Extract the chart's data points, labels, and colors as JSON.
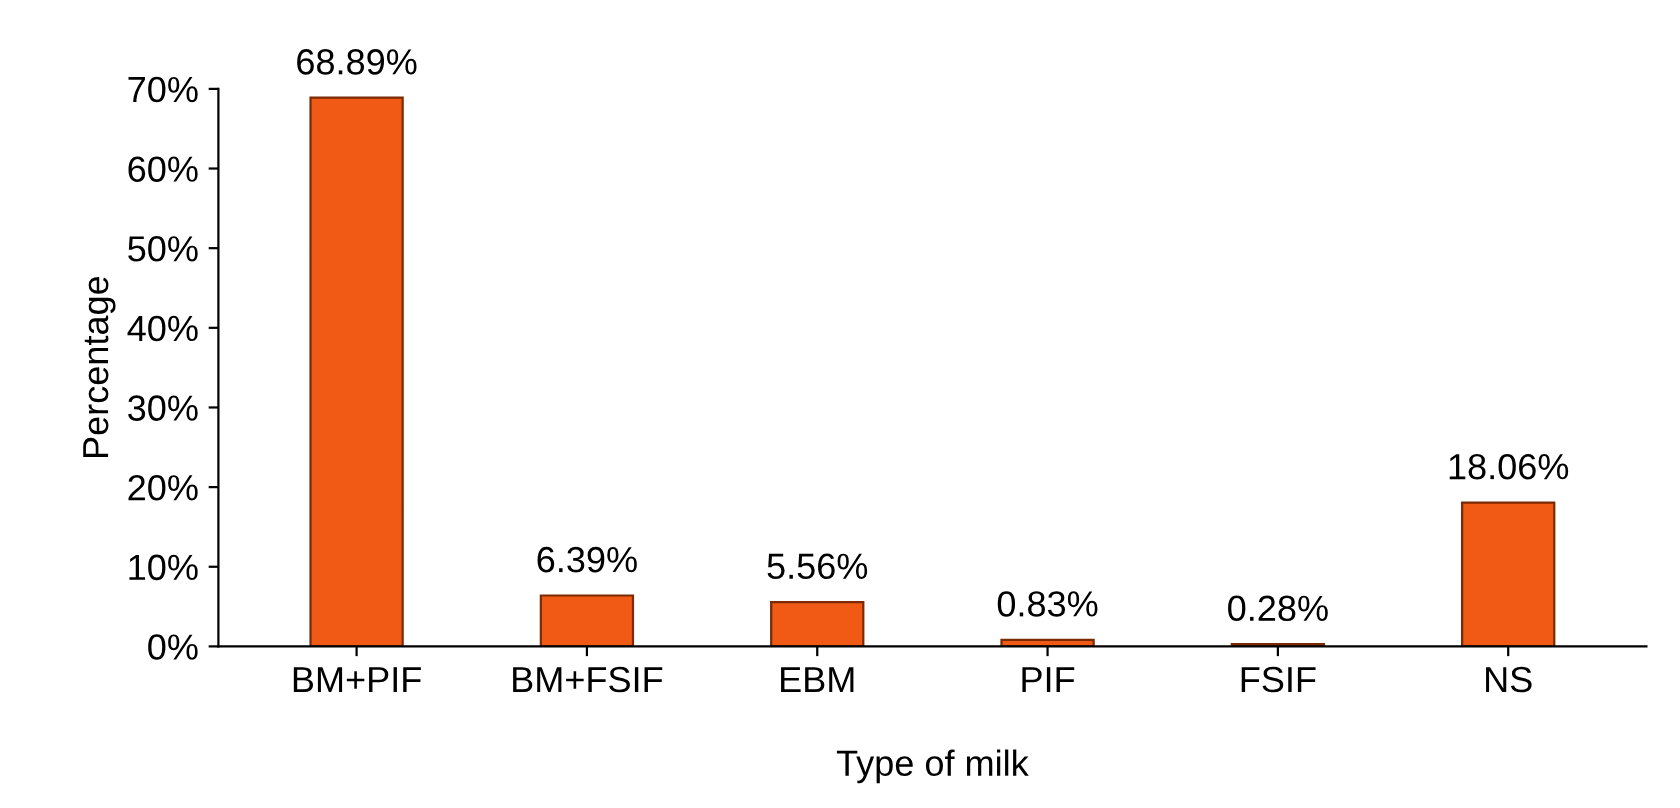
{
  "chart_data": {
    "type": "bar",
    "xlabel": "Type of milk",
    "ylabel": "Percentage",
    "categories": [
      "BM+PIF",
      "BM+FSIF",
      "EBM",
      "PIF",
      "FSIF",
      "NS"
    ],
    "values": [
      68.89,
      6.39,
      5.56,
      0.83,
      0.28,
      18.06
    ],
    "value_labels": [
      "68.89%",
      "6.39%",
      "5.56%",
      "0.83%",
      "0.28%",
      "18.06%"
    ],
    "color": "#f05a14",
    "ylim": [
      0,
      70
    ],
    "yticks": [
      {
        "value": 0,
        "label": "0%"
      },
      {
        "value": 10,
        "label": "10%"
      },
      {
        "value": 20,
        "label": "20%"
      },
      {
        "value": 30,
        "label": "30%"
      },
      {
        "value": 40,
        "label": "40%"
      },
      {
        "value": 50,
        "label": "50%"
      },
      {
        "value": 60,
        "label": "60%"
      },
      {
        "value": 70,
        "label": "70%"
      }
    ],
    "grid": false,
    "legend": false
  }
}
